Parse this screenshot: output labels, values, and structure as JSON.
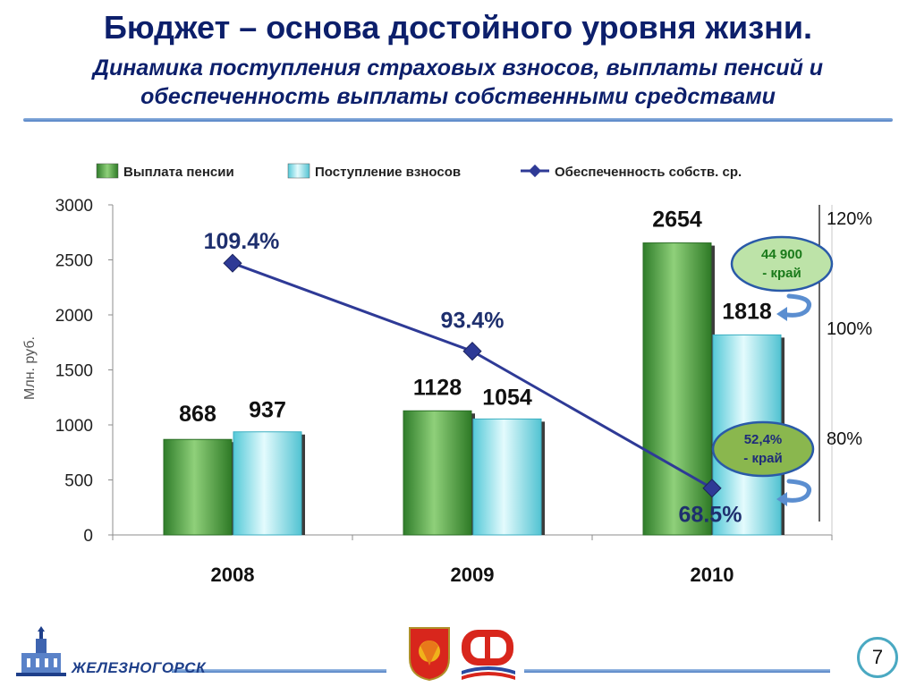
{
  "header": {
    "title": "Бюджет – основа достойного уровня жизни.",
    "subtitle_line1": "Динамика поступления страховых взносов, выплаты пенсий и",
    "subtitle_line2": "обеспеченность выплаты собственными средствами"
  },
  "chart_data": {
    "type": "bar",
    "categories": [
      "2008",
      "2009",
      "2010"
    ],
    "series": [
      {
        "name": "Выплата пенсии",
        "kind": "bar",
        "values": [
          868,
          1128,
          2654
        ],
        "color": "#4e9a3c"
      },
      {
        "name": "Поступление взносов",
        "kind": "bar",
        "values": [
          937,
          1054,
          1818
        ],
        "color": "#7ddde8"
      },
      {
        "name": "Обеспеченность собств. ср.",
        "kind": "line",
        "axis": "right",
        "values": [
          109.4,
          93.4,
          68.5
        ],
        "labels": [
          "109.4%",
          "93.4%",
          "68.5%"
        ],
        "color": "#2e3a96"
      }
    ],
    "ylabel": "Млн. руб.",
    "ylim": [
      0,
      3000
    ],
    "yticks": [
      0,
      500,
      1000,
      1500,
      2000,
      2500,
      3000
    ],
    "y2lim": [
      60,
      120
    ],
    "y2ticks": [
      {
        "value": 120,
        "label": "120%"
      },
      {
        "value": 100,
        "label": "100%"
      },
      {
        "value": 80,
        "label": "80%"
      }
    ],
    "grid": false,
    "legend": "top",
    "annotations": [
      {
        "line1": "44 900",
        "line2": "- край",
        "fill": "#bde3a8",
        "text_color": "#1a7a1a"
      },
      {
        "line1": "52,4%",
        "line2": "- край",
        "fill": "#8ab74e",
        "text_color": "#1e2b7a"
      }
    ]
  },
  "footer": {
    "logo_text": "ЖЕЛЕЗНОГОРСК",
    "page_number": "7"
  }
}
